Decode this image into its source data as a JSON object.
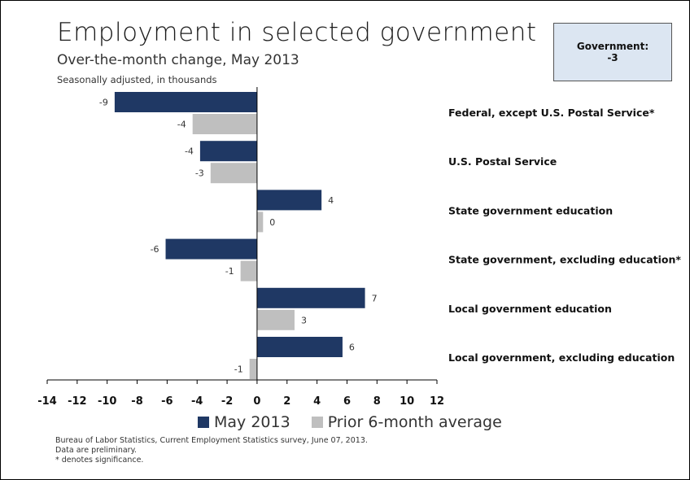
{
  "title": "Employment in selected government",
  "subtitle": "Over-the-month change, May 2013",
  "note": "Seasonally adjusted, in thousands",
  "callout": {
    "label": "Government:",
    "value": "-3"
  },
  "legend": {
    "series1": "May 2013",
    "series2": "Prior 6-month average"
  },
  "source": {
    "line1": "Bureau of Labor Statistics, Current Employment Statistics survey, June 07, 2013.",
    "line2": "Data are preliminary.",
    "line3": "* denotes significance."
  },
  "colors": {
    "series1": "#1f3864",
    "series2": "#bfbfbf"
  },
  "chart_data": {
    "type": "bar",
    "orientation": "horizontal",
    "categories": [
      "Federal, except U.S. Postal Service*",
      "U.S. Postal Service",
      "State government education",
      "State government, excluding education*",
      "Local government education",
      "Local government, excluding education"
    ],
    "series": [
      {
        "name": "May 2013",
        "values": [
          -9.5,
          -3.8,
          4.3,
          -6.1,
          7.2,
          5.7
        ],
        "labels": [
          "-9",
          "-4",
          "4",
          "-6",
          "7",
          "6"
        ]
      },
      {
        "name": "Prior 6-month average",
        "values": [
          -4.3,
          -3.1,
          0.4,
          -1.1,
          2.5,
          -0.5
        ],
        "labels": [
          "-4",
          "-3",
          "0",
          "-1",
          "3",
          "-1"
        ]
      }
    ],
    "xlim": [
      -14,
      12
    ],
    "xticks": [
      -14,
      -12,
      -10,
      -8,
      -6,
      -4,
      -2,
      0,
      2,
      4,
      6,
      8,
      10,
      12
    ],
    "grid": false,
    "legend_position": "bottom"
  }
}
